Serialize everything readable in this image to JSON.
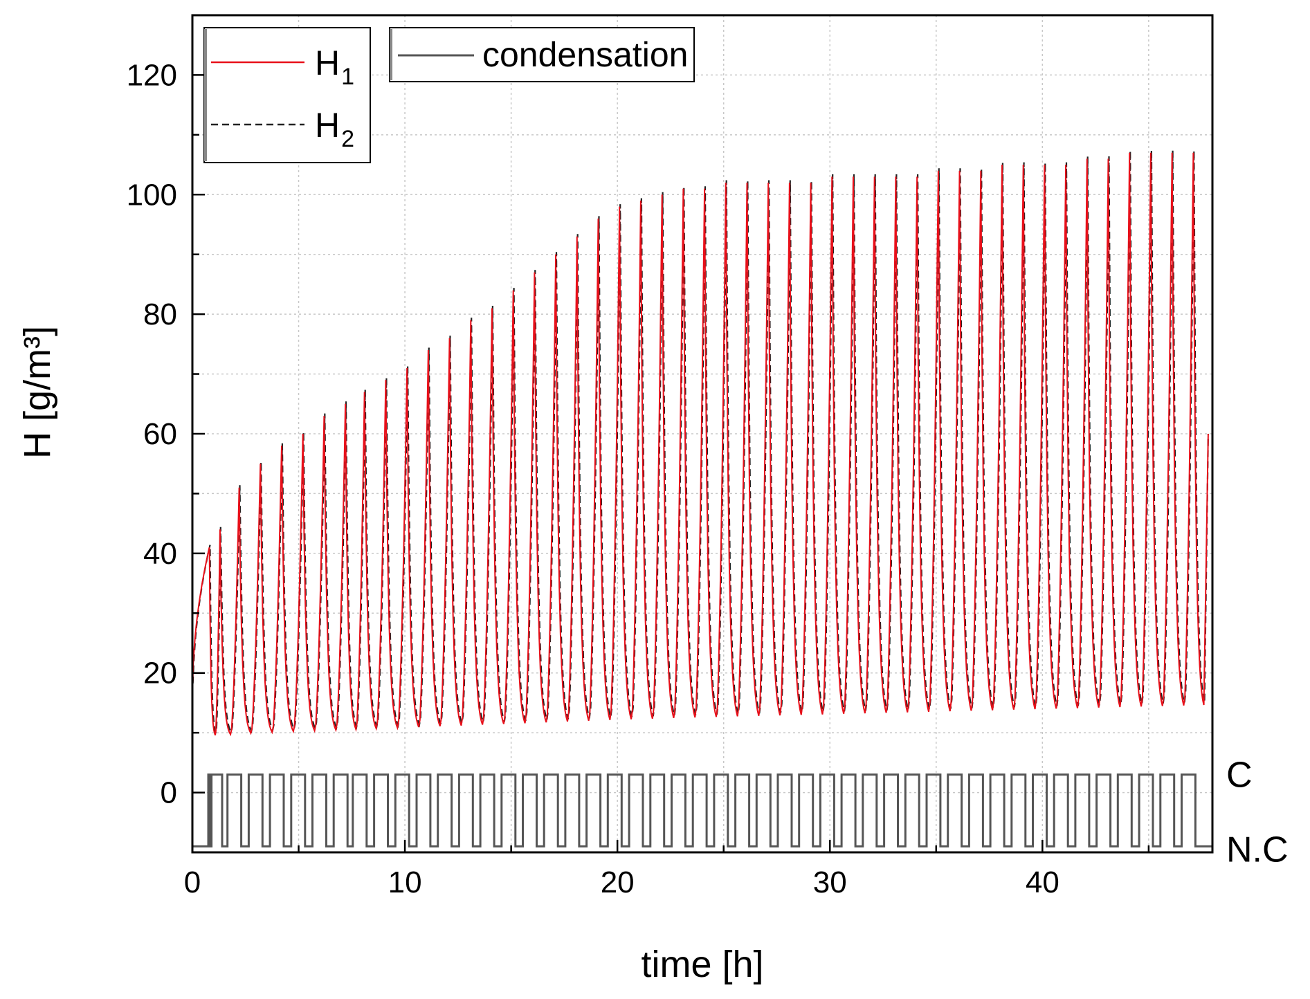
{
  "chart_data": {
    "type": "line",
    "title": "",
    "xlabel": "time [h]",
    "ylabel": "H [g/m³]",
    "xlim": [
      0,
      48
    ],
    "ylim": [
      -10,
      130
    ],
    "x_ticks": [
      0,
      10,
      20,
      30,
      40
    ],
    "y_ticks": [
      0,
      20,
      40,
      60,
      80,
      100,
      120
    ],
    "grid": true,
    "legend": [
      {
        "main": "H",
        "sub": "1",
        "style": "solid",
        "color": "#e8101a"
      },
      {
        "main": "H",
        "sub": "2",
        "style": "dashed",
        "color": "#222222"
      }
    ],
    "legend2": [
      {
        "label": "condensation",
        "style": "solid",
        "color": "#555555"
      }
    ],
    "state_labels": {
      "high": "C",
      "low": "N.C"
    },
    "series": [
      {
        "name": "H1",
        "color": "#e8101a",
        "description": "humidity cycles: start ~16 at t=0, rising to ~41 at ~0.8 h; then periodic sawtooth cycles with peaks growing toward ~107 and troughs ~9–13",
        "peaks_approx": [
          [
            0.8,
            41
          ],
          [
            1.3,
            44
          ],
          [
            2.2,
            51
          ],
          [
            3.2,
            55
          ],
          [
            4.2,
            58
          ],
          [
            5.2,
            60
          ],
          [
            6.2,
            63
          ],
          [
            7.2,
            65
          ],
          [
            8.1,
            67
          ],
          [
            9.1,
            69
          ],
          [
            10.1,
            71
          ],
          [
            11.1,
            74
          ],
          [
            12.1,
            76
          ],
          [
            13.1,
            79
          ],
          [
            14.1,
            81
          ],
          [
            15.1,
            84
          ],
          [
            16.1,
            87
          ],
          [
            17.1,
            90
          ],
          [
            18.1,
            93
          ],
          [
            19.1,
            96
          ],
          [
            20.1,
            98
          ],
          [
            21.1,
            99
          ],
          [
            22.1,
            100
          ],
          [
            23.1,
            101
          ],
          [
            24.1,
            101
          ],
          [
            25.1,
            102
          ],
          [
            26.1,
            102
          ],
          [
            27.1,
            102
          ],
          [
            28.1,
            102
          ],
          [
            29.1,
            102
          ],
          [
            30.1,
            103
          ],
          [
            31.1,
            103
          ],
          [
            32.1,
            103
          ],
          [
            33.1,
            103
          ],
          [
            34.1,
            103
          ],
          [
            35.1,
            104
          ],
          [
            36.1,
            104
          ],
          [
            37.1,
            104
          ],
          [
            38.1,
            105
          ],
          [
            39.1,
            105
          ],
          [
            40.1,
            105
          ],
          [
            41.1,
            105
          ],
          [
            42.1,
            106
          ],
          [
            43.1,
            106
          ],
          [
            44.1,
            107
          ],
          [
            45.1,
            107
          ],
          [
            46.1,
            107
          ],
          [
            47.1,
            107
          ]
        ],
        "trough_range": [
          9,
          13
        ]
      },
      {
        "name": "H2",
        "color": "#222222",
        "description": "nearly identical to H1, drawn dashed"
      },
      {
        "name": "condensation",
        "color": "#555555",
        "description": "binary square wave between N.C (≈ -9) and C (≈ 3) synchronized with cycles",
        "high_level": 3,
        "low_level": -9
      }
    ]
  }
}
